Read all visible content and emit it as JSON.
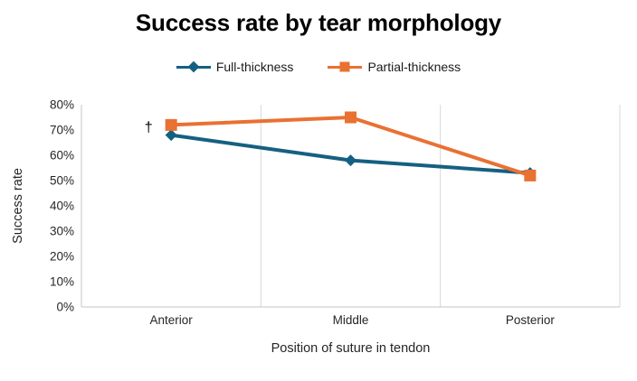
{
  "title": "Success rate by tear morphology",
  "colors": {
    "series_full": "#156082",
    "series_partial": "#E97132",
    "gridline": "#D9D9D9",
    "axis_line": "#C6C6C6",
    "tick_text": "#262626",
    "title_text": "#000000"
  },
  "chart_data": {
    "type": "line",
    "title": "Success rate by tear morphology",
    "categories": [
      "Anterior",
      "Middle",
      "Posterior"
    ],
    "series": [
      {
        "name": "Full-thickness",
        "values": [
          68,
          58,
          53
        ],
        "color": "#156082",
        "marker": "diamond"
      },
      {
        "name": "Partial-thickness",
        "values": [
          72,
          75,
          52
        ],
        "color": "#E97132",
        "marker": "square"
      }
    ],
    "xlabel": "Position of suture in tendon",
    "ylabel": "Success rate",
    "ylim": [
      0,
      80
    ],
    "ytick_step": 10,
    "ytick_format": "percent",
    "ytick_labels": [
      "0%",
      "10%",
      "20%",
      "30%",
      "40%",
      "50%",
      "60%",
      "70%",
      "80%"
    ],
    "grid": "vertical-only",
    "legend_position": "top",
    "annotations": [
      {
        "text": "†",
        "category_index": 0,
        "value": 71,
        "dx": -25,
        "meaning": "dagger-significance-marker"
      }
    ]
  }
}
